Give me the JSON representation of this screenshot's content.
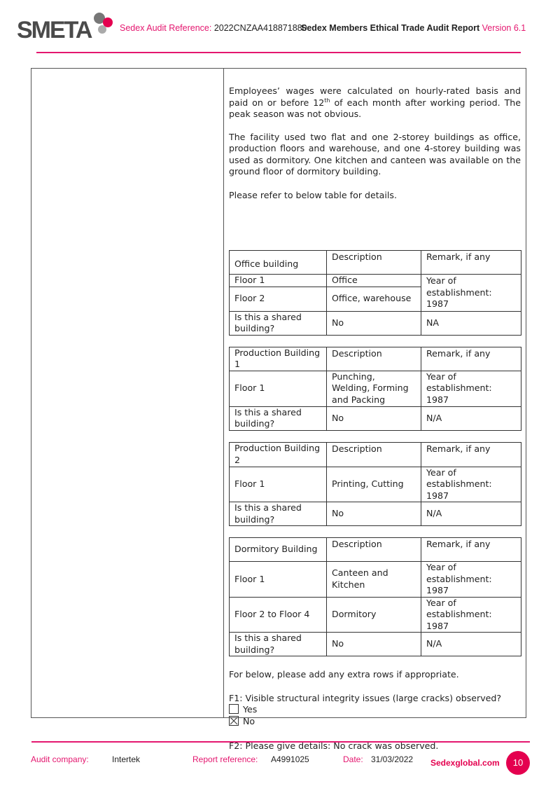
{
  "header": {
    "logo": "SMETA",
    "audit_ref_label": "Sedex Audit Reference:",
    "audit_ref_value": "2022CNZAA418871880",
    "report_title": "Sedex Members Ethical Trade Audit Report",
    "version": "Version 6.1"
  },
  "body": {
    "para1a": "Employees’ wages were calculated on hourly-rated basis and paid on or before 12",
    "para1sup": "th",
    "para1b": " of each month after working period. The peak season was not obvious.",
    "para2": "The facility used two flat and one 2-storey buildings as office, production floors and warehouse, and one 4-storey building was used as dormitory. One kitchen and canteen was available on the ground floor of dormitory building.",
    "para3": "Please refer to below table for details.",
    "tables": [
      {
        "rows": [
          [
            "Office building",
            "Description",
            "Remark, if any"
          ],
          [
            "Floor 1",
            "Office",
            "Year of establishment: 1987"
          ],
          [
            "Floor 2",
            "Office, warehouse",
            ""
          ],
          [
            "Is this a shared building?",
            "No",
            "NA"
          ]
        ]
      },
      {
        "rows": [
          [
            "Production Building 1",
            "Description",
            "Remark, if any"
          ],
          [
            "Floor 1",
            "Punching, Welding, Forming and Packing",
            "Year of establishment: 1987"
          ],
          [
            "Is this a shared building?",
            "No",
            "N/A"
          ]
        ]
      },
      {
        "rows": [
          [
            "Production Building 2",
            "Description",
            "Remark, if any"
          ],
          [
            "Floor 1",
            "Printing, Cutting",
            "Year of establishment: 1987"
          ],
          [
            "Is this a shared building?",
            "No",
            "N/A"
          ]
        ]
      },
      {
        "rows": [
          [
            "Dormitory Building",
            "Description",
            "Remark, if any"
          ],
          [
            "Floor 1",
            "Canteen and Kitchen",
            "Year of establishment: 1987"
          ],
          [
            "Floor 2 to Floor 4",
            "Dormitory",
            "Year of establishment: 1987"
          ],
          [
            "Is this a shared building?",
            "No",
            "N/A"
          ]
        ]
      }
    ],
    "extra_rows_note": "For below, please add any extra rows if appropriate.",
    "f1_question": "F1: Visible structural integrity issues (large cracks) observed?",
    "f1_options": [
      {
        "label": "Yes",
        "checked": false
      },
      {
        "label": "No",
        "checked": true
      }
    ],
    "f2": "F2: Please give details:  No crack was observed."
  },
  "footer": {
    "audit_company_label": "Audit company:",
    "audit_company": "Intertek",
    "report_ref_label": "Report reference:",
    "report_ref": "A4991025",
    "date_label": "Date:",
    "date": "31/03/2022",
    "site": "Sedexglobal.com",
    "page": "10"
  },
  "colors": {
    "accent": "#e4176f"
  }
}
